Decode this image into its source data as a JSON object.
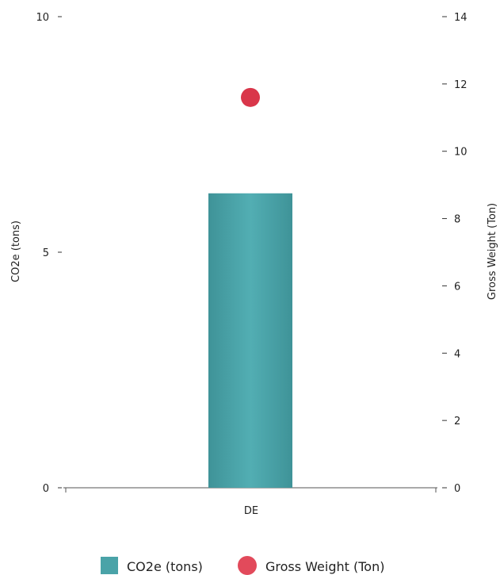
{
  "chart_data": {
    "type": "bar",
    "categories": [
      "DE"
    ],
    "series": [
      {
        "name": "CO2e (tons)",
        "kind": "bar",
        "axis": "left",
        "color": "#4aa3a8",
        "values": [
          6.25
        ]
      },
      {
        "name": "Gross Weight (Ton)",
        "kind": "scatter",
        "axis": "right",
        "color": "#d9364a",
        "values": [
          11.6
        ]
      }
    ],
    "y_left": {
      "label": "CO2e (tons)",
      "ylim": [
        0,
        10
      ],
      "ticks": [
        0,
        5,
        10
      ]
    },
    "y_right": {
      "label": "Gross Weight (Ton)",
      "ylim": [
        0,
        14
      ],
      "ticks": [
        0,
        2,
        4,
        6,
        8,
        10,
        12,
        14
      ]
    },
    "grid": false,
    "legend": {
      "position": "bottom",
      "items": [
        "CO2e (tons)",
        "Gross Weight (Ton)"
      ]
    }
  }
}
